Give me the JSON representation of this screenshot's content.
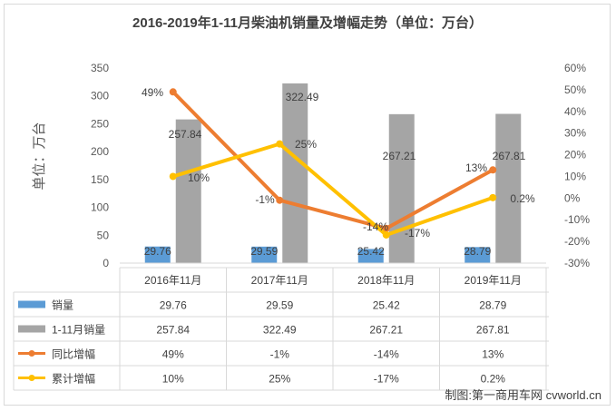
{
  "chart_data": {
    "type": "bar+line",
    "title": "2016-2019年1-11月柴油机销量及增幅走势（单位：万台）",
    "ylabel": "单位：万台",
    "categories": [
      "2016年11月",
      "2017年11月",
      "2018年11月",
      "2019年11月"
    ],
    "y_left": {
      "range": [
        0,
        350
      ],
      "ticks": [
        "0",
        "50",
        "100",
        "150",
        "200",
        "250",
        "300",
        "350"
      ]
    },
    "y_right": {
      "range": [
        -30,
        60
      ],
      "ticks": [
        "-30%",
        "-20%",
        "-10%",
        "0%",
        "10%",
        "20%",
        "30%",
        "40%",
        "50%",
        "60%"
      ]
    },
    "series": [
      {
        "name": "销量",
        "type": "bar",
        "axis": "left",
        "color": "#5b9bd5",
        "values": [
          29.76,
          29.59,
          25.42,
          28.79
        ],
        "labels": [
          "29.76",
          "29.59",
          "25.42",
          "28.79"
        ]
      },
      {
        "name": "1-11月销量",
        "type": "bar",
        "axis": "left",
        "color": "#a5a5a5",
        "values": [
          257.84,
          322.49,
          267.21,
          267.81
        ],
        "labels": [
          "257.84",
          "322.49",
          "267.21",
          "267.81"
        ]
      },
      {
        "name": "同比增幅",
        "type": "line",
        "axis": "right",
        "color": "#ed7d31",
        "values": [
          49,
          -1,
          -14,
          13
        ],
        "labels": [
          "49%",
          "-1%",
          "-14%",
          "13%"
        ]
      },
      {
        "name": "累计增幅",
        "type": "line",
        "axis": "right",
        "color": "#ffc000",
        "values": [
          10,
          25,
          -17,
          0.2
        ],
        "labels": [
          "10%",
          "25%",
          "-17%",
          "0.2%"
        ]
      }
    ],
    "legend": "data-table",
    "grid": false
  },
  "credit": "制图:第一商用车网 cvworld.cn"
}
